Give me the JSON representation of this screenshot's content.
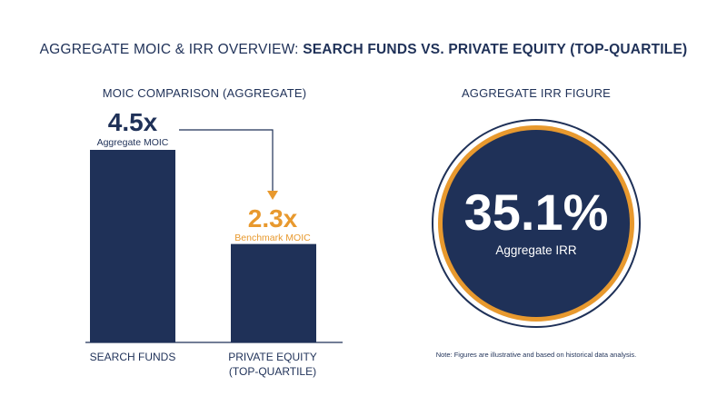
{
  "title": {
    "prefix": "AGGREGATE MOIC & IRR OVERVIEW: ",
    "bold": "SEARCH FUNDS VS. PRIVATE EQUITY (TOP-QUARTILE)"
  },
  "moic": {
    "heading": "MOIC COMPARISON (AGGREGATE)"
  },
  "irr": {
    "heading": "AGGREGATE IRR FIGURE",
    "value": "35.1%",
    "label": "Aggregate IRR"
  },
  "note": "Note: Figures are illustrative and based on historical data analysis.",
  "colors": {
    "navy": "#1f3158",
    "orange": "#e8992e"
  },
  "chart_data": [
    {
      "type": "bar",
      "title": "MOIC COMPARISON (AGGREGATE)",
      "categories": [
        "SEARCH FUNDS",
        "PRIVATE EQUITY (TOP-QUARTILE)"
      ],
      "category_lines": [
        [
          "SEARCH FUNDS"
        ],
        [
          "PRIVATE EQUITY",
          "(TOP-QUARTILE)"
        ]
      ],
      "values": [
        4.5,
        2.3
      ],
      "value_labels": [
        "4.5x",
        "2.3x"
      ],
      "value_sublabels": [
        "Aggregate MOIC",
        "Benchmark MOIC"
      ],
      "ylim": [
        0,
        4.5
      ],
      "grid": false,
      "annotations": [
        "arrow from 4.5x bar to 2.3x bar"
      ]
    },
    {
      "type": "gauge",
      "title": "AGGREGATE IRR FIGURE",
      "value": 35.1,
      "unit": "%",
      "label": "Aggregate IRR"
    }
  ]
}
